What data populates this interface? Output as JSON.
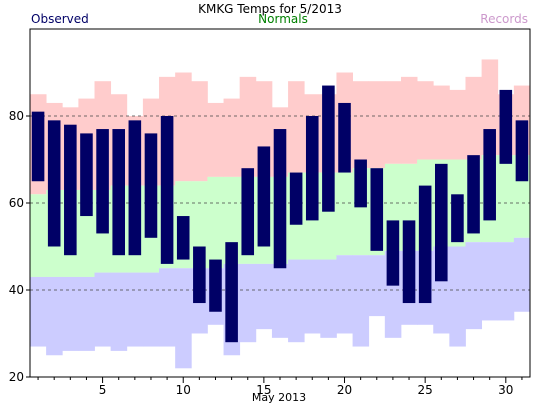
{
  "chart_data": {
    "type": "bar",
    "title": "KMKG Temps for 5/2013",
    "xlabel": "May 2013",
    "ylabel": "",
    "xlim": [
      0.5,
      31.5
    ],
    "ylim": [
      20,
      100
    ],
    "yticks": [
      20,
      40,
      60,
      80
    ],
    "xticks": [
      5,
      10,
      15,
      20,
      25,
      30
    ],
    "dashed_gridlines": [
      40,
      60,
      80
    ],
    "legend": {
      "position": "top",
      "items": [
        "Observed",
        "Normals",
        "Records"
      ]
    },
    "colors": {
      "observed": "#000066",
      "normals": "#ccffcc",
      "records_high": "#ffcccc",
      "records_low": "#ccccff",
      "normals_label": "#008000",
      "records_label": "#cc99cc",
      "observed_label": "#000066",
      "grid": "#444444"
    },
    "days": [
      1,
      2,
      3,
      4,
      5,
      6,
      7,
      8,
      9,
      10,
      11,
      12,
      13,
      14,
      15,
      16,
      17,
      18,
      19,
      20,
      21,
      22,
      23,
      24,
      25,
      26,
      27,
      28,
      29,
      30,
      31
    ],
    "series": [
      {
        "name": "Observed",
        "high": [
          81,
          79,
          78,
          76,
          77,
          77,
          79,
          76,
          80,
          57,
          50,
          47,
          51,
          68,
          73,
          77,
          67,
          80,
          87,
          83,
          70,
          68,
          56,
          56,
          64,
          69,
          62,
          71,
          77,
          86,
          79
        ],
        "low": [
          65,
          50,
          48,
          57,
          53,
          48,
          48,
          52,
          46,
          47,
          37,
          35,
          28,
          48,
          50,
          45,
          55,
          56,
          58,
          67,
          59,
          49,
          41,
          37,
          37,
          42,
          51,
          53,
          56,
          69,
          65
        ]
      },
      {
        "name": "Normals",
        "high": [
          62,
          63,
          63,
          63,
          63,
          64,
          64,
          64,
          64,
          65,
          65,
          66,
          66,
          66,
          66,
          66,
          67,
          67,
          67,
          67,
          68,
          68,
          69,
          69,
          70,
          70,
          70,
          70,
          71,
          71,
          71
        ],
        "low": [
          43,
          43,
          43,
          43,
          44,
          44,
          44,
          44,
          45,
          45,
          45,
          45,
          46,
          46,
          46,
          46,
          47,
          47,
          47,
          48,
          48,
          48,
          49,
          49,
          49,
          50,
          50,
          51,
          51,
          51,
          52
        ]
      },
      {
        "name": "Records",
        "high": [
          85,
          83,
          82,
          84,
          88,
          85,
          80,
          84,
          89,
          90,
          88,
          83,
          84,
          89,
          88,
          82,
          88,
          85,
          85,
          90,
          88,
          88,
          88,
          89,
          88,
          87,
          86,
          89,
          93,
          85,
          87
        ],
        "low": [
          27,
          25,
          26,
          26,
          27,
          26,
          27,
          27,
          27,
          22,
          30,
          32,
          25,
          28,
          31,
          29,
          28,
          30,
          29,
          30,
          27,
          34,
          29,
          32,
          32,
          30,
          27,
          31,
          33,
          33,
          35
        ]
      }
    ]
  }
}
